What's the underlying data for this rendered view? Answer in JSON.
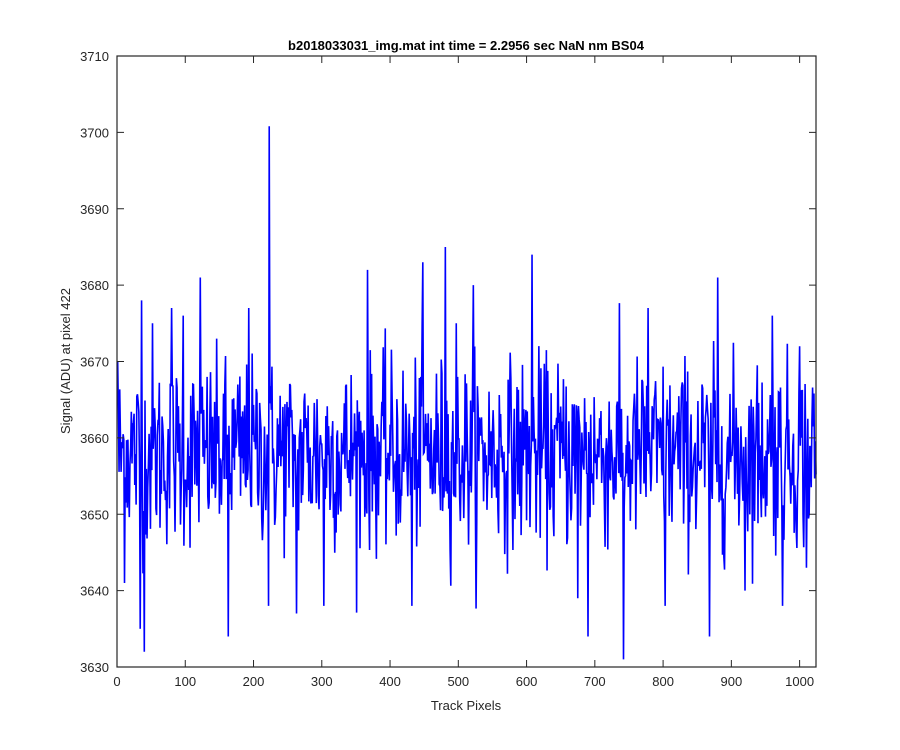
{
  "chart_data": {
    "type": "line",
    "title": "b2018033031_img.mat int time = 2.2956 sec  NaN nm BS04",
    "xlabel": "Track Pixels",
    "ylabel": "Signal (ADU) at pixel 422",
    "xlim": [
      0,
      1024
    ],
    "ylim": [
      3630,
      3710
    ],
    "xticks": [
      0,
      100,
      200,
      300,
      400,
      500,
      600,
      700,
      800,
      900,
      1000
    ],
    "yticks": [
      3630,
      3640,
      3650,
      3660,
      3670,
      3680,
      3690,
      3700,
      3710
    ],
    "grid": false,
    "legend": "none",
    "series": [
      {
        "color": "#0000ff",
        "n_points": 1024,
        "x_start": 1,
        "baseline": 3658,
        "noise_std": 6,
        "notable_points": [
          {
            "x": 1,
            "y": 3670
          },
          {
            "x": 11,
            "y": 3641
          },
          {
            "x": 36,
            "y": 3678
          },
          {
            "x": 34,
            "y": 3635
          },
          {
            "x": 40,
            "y": 3632
          },
          {
            "x": 52,
            "y": 3675
          },
          {
            "x": 80,
            "y": 3677
          },
          {
            "x": 97,
            "y": 3676
          },
          {
            "x": 122,
            "y": 3681
          },
          {
            "x": 163,
            "y": 3634
          },
          {
            "x": 193,
            "y": 3677
          },
          {
            "x": 222,
            "y": 3638
          },
          {
            "x": 223,
            "y": 3700.8
          },
          {
            "x": 263,
            "y": 3637
          },
          {
            "x": 303,
            "y": 3638
          },
          {
            "x": 367,
            "y": 3682
          },
          {
            "x": 432,
            "y": 3638
          },
          {
            "x": 448,
            "y": 3683
          },
          {
            "x": 481,
            "y": 3685
          },
          {
            "x": 497,
            "y": 3675
          },
          {
            "x": 522,
            "y": 3680
          },
          {
            "x": 608,
            "y": 3684
          },
          {
            "x": 675,
            "y": 3639
          },
          {
            "x": 690,
            "y": 3634
          },
          {
            "x": 742,
            "y": 3631
          },
          {
            "x": 778,
            "y": 3677
          },
          {
            "x": 803,
            "y": 3638
          },
          {
            "x": 868,
            "y": 3634
          },
          {
            "x": 880,
            "y": 3681
          },
          {
            "x": 920,
            "y": 3640
          },
          {
            "x": 960,
            "y": 3676
          },
          {
            "x": 975,
            "y": 3638
          },
          {
            "x": 1000,
            "y": 3672
          },
          {
            "x": 1010,
            "y": 3643
          }
        ]
      }
    ]
  }
}
